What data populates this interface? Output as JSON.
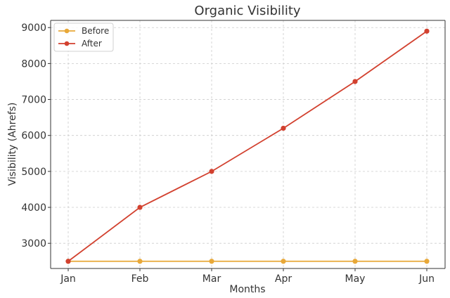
{
  "chart_data": {
    "type": "line",
    "title": "Organic Visibility",
    "xlabel": "Months",
    "ylabel": "Visibility (Ahrefs)",
    "categories": [
      "Jan",
      "Feb",
      "Mar",
      "Apr",
      "May",
      "Jun"
    ],
    "yticks": [
      3000,
      4000,
      5000,
      6000,
      7000,
      8000,
      9000
    ],
    "ylim": [
      2300,
      9200
    ],
    "grid": true,
    "legend_position": "top-left",
    "series": [
      {
        "name": "Before",
        "color": "#E8A838",
        "values": [
          2500,
          2500,
          2500,
          2500,
          2500,
          2500
        ]
      },
      {
        "name": "After",
        "color": "#D2412F",
        "values": [
          2500,
          4000,
          5000,
          6200,
          7500,
          8900
        ]
      }
    ]
  }
}
